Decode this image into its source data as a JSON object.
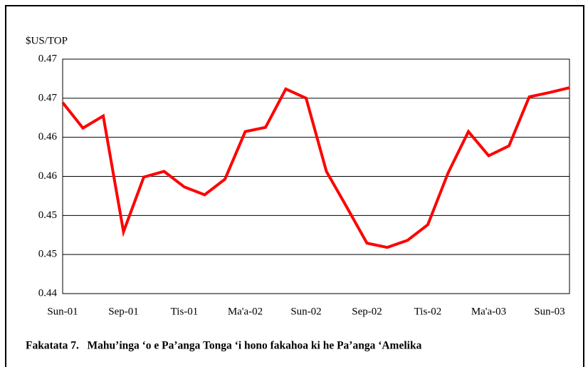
{
  "chart_data": {
    "type": "line",
    "title": "Fakatata 7.   Mahu’inga ‘o e Pa’anga Tonga ‘i hono fakahoa ki he Pa’anga ‘Amelika",
    "y_label": "$US/TOP",
    "categories": [
      "Sun-01",
      null,
      null,
      "Sep-01",
      null,
      null,
      "Tis-01",
      null,
      null,
      "Ma'a-02",
      null,
      null,
      "Sun-02",
      null,
      null,
      "Sep-02",
      null,
      null,
      "Tis-02",
      null,
      null,
      "Ma'a-03",
      null,
      null,
      "Sun-03",
      null
    ],
    "series": [
      {
        "name": "$US/TOP",
        "color": "#ff0000",
        "values": [
          0.46445,
          0.46118,
          0.46273,
          0.44791,
          0.45491,
          0.45564,
          0.45364,
          0.45264,
          0.45464,
          0.46073,
          0.46127,
          0.46618,
          0.465,
          0.45564,
          0.45109,
          0.44645,
          0.44591,
          0.44682,
          0.44882,
          0.45545,
          0.46073,
          0.45764,
          0.45891,
          0.46518,
          0.46573,
          0.46636
        ]
      }
    ],
    "ylim": [
      0.44,
      0.47
    ],
    "yticks": [
      0.44,
      {
        "value": 0.445,
        "label": "0.45"
      },
      0.45,
      {
        "value": 0.455,
        "label": "0.46"
      },
      0.46,
      {
        "value": 0.465,
        "label": "0.47"
      },
      0.47
    ],
    "grid": true
  }
}
